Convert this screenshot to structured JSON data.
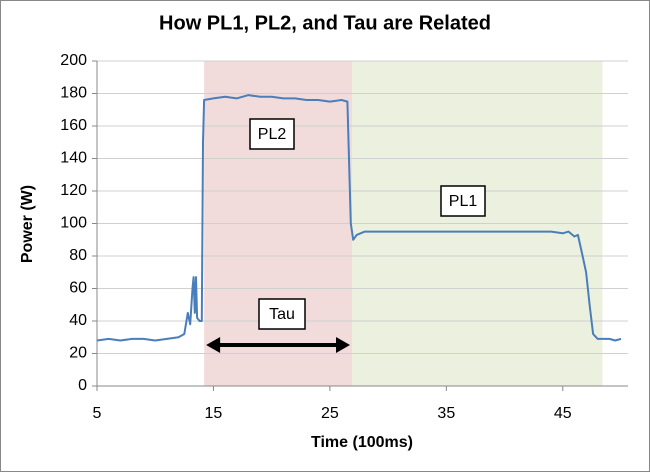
{
  "chart_data": {
    "type": "line",
    "title": "How PL1, PL2, and Tau are Related",
    "x_label": "Time (100ms)",
    "y_label": "Power (W)",
    "x": [
      5,
      6,
      7,
      8,
      9,
      10,
      11,
      12,
      12.5,
      12.8,
      13,
      13.2,
      13.3,
      13.4,
      13.5,
      13.6,
      13.8,
      14.0,
      14.1,
      14.2,
      15,
      16,
      17,
      18,
      19,
      20,
      21,
      22,
      23,
      24,
      25,
      26,
      26.5,
      26.8,
      27,
      27.3,
      28,
      30,
      32,
      35,
      40,
      44,
      45,
      45.5,
      46,
      46.3,
      46.7,
      47,
      47.3,
      47.6,
      48,
      49,
      49.5,
      50
    ],
    "series": [
      {
        "name": "Power",
        "color": "#4a7ebb",
        "values": [
          28,
          29,
          28,
          29,
          29,
          28,
          29,
          30,
          32,
          45,
          38,
          60,
          67,
          45,
          67,
          42,
          40,
          40,
          150,
          176,
          177,
          178,
          177,
          179,
          178,
          178,
          177,
          177,
          176,
          176,
          175,
          176,
          175,
          100,
          90,
          93,
          95,
          95,
          95,
          95,
          95,
          95,
          94,
          95,
          92,
          93,
          80,
          70,
          50,
          32,
          29,
          29,
          28,
          29
        ]
      }
    ],
    "shaded_regions": [
      {
        "x": [
          14.2,
          26.9
        ],
        "color": "#f2dcdb"
      },
      {
        "x": [
          26.9,
          48.4
        ],
        "color": "#ebf1de"
      }
    ],
    "annotations": [
      "PL2",
      "PL1",
      "Tau"
    ],
    "xlim": [
      5,
      50
    ],
    "xticks": [
      5,
      15,
      25,
      35,
      45
    ],
    "ylim": [
      0,
      200
    ],
    "yticks": [
      0,
      20,
      40,
      60,
      80,
      100,
      120,
      140,
      160,
      180,
      200
    ],
    "grid": true
  }
}
